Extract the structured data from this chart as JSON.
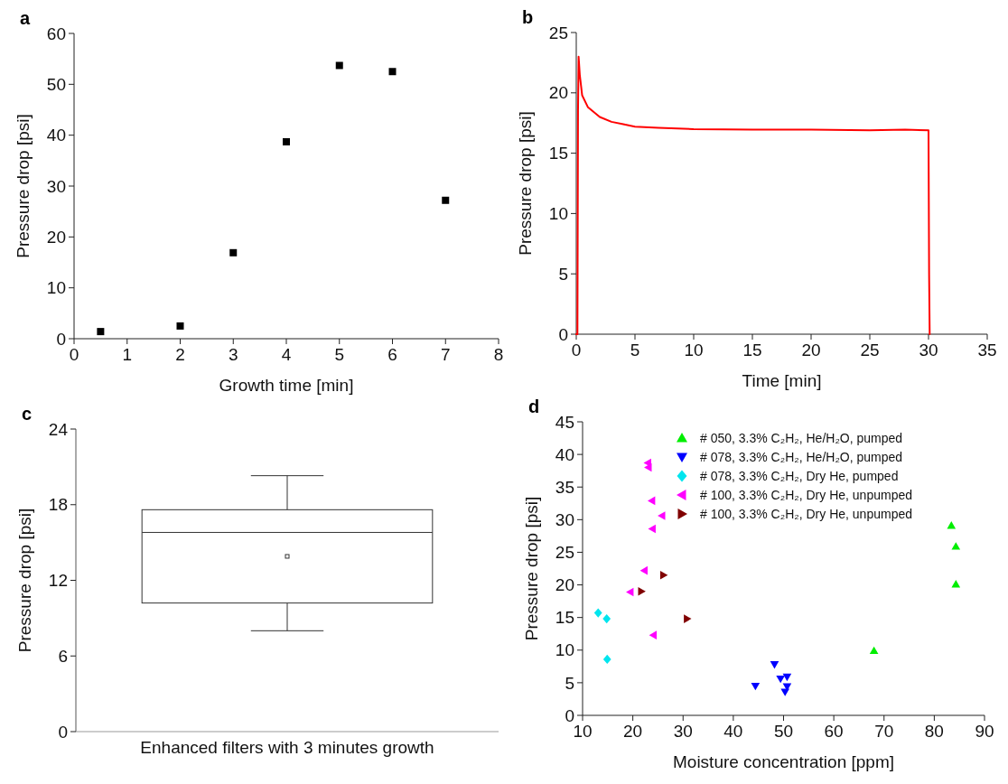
{
  "chart_data": [
    {
      "type": "scatter",
      "title": "a",
      "xlabel": "Growth time [min]",
      "ylabel": "Pressure drop [psi]",
      "xlim": [
        0,
        8
      ],
      "xticks": [
        0,
        1,
        2,
        3,
        4,
        5,
        6,
        7,
        8
      ],
      "ylim": [
        0,
        60
      ],
      "yticks": [
        0,
        10,
        20,
        30,
        40,
        50,
        60
      ],
      "marker": "square",
      "legend": false,
      "series": [
        {
          "color": "#000000",
          "x": [
            0.5,
            2,
            3,
            4,
            5,
            6,
            7
          ],
          "values": [
            1.4,
            2.5,
            16.9,
            38.7,
            53.7,
            52.5,
            27.2
          ]
        }
      ]
    },
    {
      "type": "line",
      "title": "b",
      "xlabel": "Time [min]",
      "ylabel": "Pressure drop [psi]",
      "xlim": [
        0,
        35
      ],
      "xticks": [
        0,
        5,
        10,
        15,
        20,
        25,
        30,
        35
      ],
      "ylim": [
        0,
        25
      ],
      "yticks": [
        0,
        5,
        10,
        15,
        20,
        25
      ],
      "marker": "none",
      "line_style": "solid",
      "legend": false,
      "series": [
        {
          "color": "#ff0000",
          "x": [
            0,
            0.1,
            0.15,
            0.2,
            0.3,
            0.5,
            1,
            2,
            3,
            4,
            5,
            7,
            10,
            15,
            20,
            25,
            28,
            30,
            30.05,
            30.1
          ],
          "values": [
            0,
            0,
            18.5,
            23,
            21.5,
            19.8,
            18.8,
            18,
            17.6,
            17.4,
            17.2,
            17.1,
            17,
            16.95,
            16.95,
            16.9,
            16.95,
            16.9,
            5,
            0
          ]
        }
      ]
    },
    {
      "type": "box",
      "title": "c",
      "ylabel": "Pressure drop [psi]",
      "categories": [
        "Enhanced filters with 3 minutes growth"
      ],
      "ylim": [
        0,
        24
      ],
      "yticks": [
        0,
        6,
        12,
        18,
        24
      ],
      "legend": false,
      "boxes": [
        {
          "low": 8.0,
          "q1": 10.2,
          "median": 15.8,
          "q3": 17.6,
          "high": 20.3,
          "mean": 13.9
        }
      ]
    },
    {
      "type": "scatter",
      "title": "d",
      "xlabel": "Moisture concentration [ppm]",
      "ylabel": "Pressure drop [psi]",
      "xlim": [
        10,
        90
      ],
      "xticks": [
        10,
        20,
        30,
        40,
        50,
        60,
        70,
        80,
        90
      ],
      "ylim": [
        0,
        45
      ],
      "yticks": [
        0,
        5,
        10,
        15,
        20,
        25,
        30,
        35,
        40,
        45
      ],
      "legend": "top right",
      "series": [
        {
          "name": "# 050, 3.3% C₂H₂, He/H₂O, pumped",
          "color": "#00ee00",
          "marker": "triangle",
          "x": [
            83.4,
            84.3,
            84.3,
            68.0
          ],
          "values": [
            29.1,
            25.9,
            20.1,
            9.9
          ]
        },
        {
          "name": "# 078, 3.3% C₂H₂, He/H₂O, pumped",
          "color": "#0000ff",
          "marker": "triangle-down",
          "x": [
            48.2,
            49.4,
            50.7,
            50.7,
            50.3,
            44.4
          ],
          "values": [
            7.8,
            5.6,
            5.9,
            4.4,
            3.6,
            4.5
          ]
        },
        {
          "name": "# 078, 3.3% C₂H₂, Dry He, pumped",
          "color": "#00e5ee",
          "marker": "diamond",
          "x": [
            13.1,
            14.8,
            14.9
          ],
          "values": [
            15.7,
            14.8,
            8.6
          ]
        },
        {
          "name": "# 100, 3.3% C₂H₂, Dry He, unpumped",
          "color": "#ff00ff",
          "marker": "triangle-left",
          "x": [
            23.0,
            23.1,
            23.8,
            25.8,
            23.9,
            22.3,
            19.5,
            24.1
          ],
          "values": [
            38.7,
            38.0,
            32.9,
            30.6,
            28.6,
            22.2,
            18.9,
            12.3
          ]
        },
        {
          "name": "# 100, 3.3% C₂H₂, Dry He, unpumped",
          "color": "#800000",
          "marker": "triangle-right",
          "x": [
            26.1,
            21.7,
            30.8
          ],
          "values": [
            21.5,
            19.0,
            14.8
          ]
        }
      ]
    }
  ]
}
